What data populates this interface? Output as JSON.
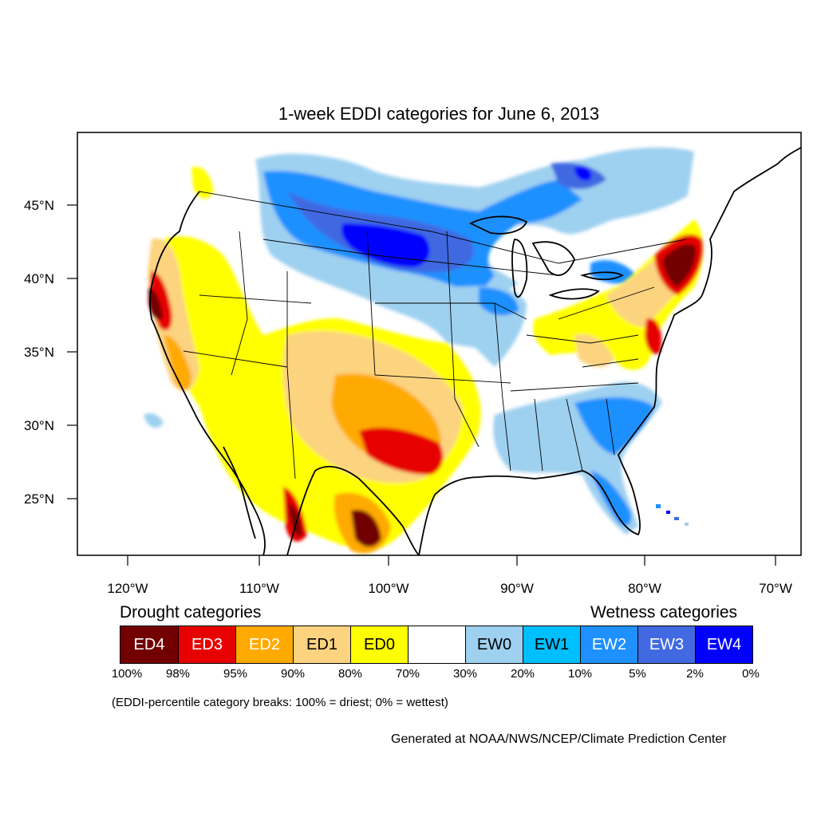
{
  "title": "1-week EDDI categories for June 6, 2013",
  "lat_labels": [
    "45°N",
    "40°N",
    "35°N",
    "30°N",
    "25°N"
  ],
  "lon_labels": [
    "120°W",
    "110°W",
    "100°W",
    "90°W",
    "80°W",
    "70°W"
  ],
  "legend": {
    "drought_heading": "Drought categories",
    "wetness_heading": "Wetness categories",
    "categories": [
      {
        "label": "ED4",
        "color": "#730000",
        "text_color": "#ffffff"
      },
      {
        "label": "ED3",
        "color": "#e60000",
        "text_color": "#ffffff"
      },
      {
        "label": "ED2",
        "color": "#ffaa00",
        "text_color": "#ffffff"
      },
      {
        "label": "ED1",
        "color": "#fcd37f",
        "text_color": "#000000"
      },
      {
        "label": "ED0",
        "color": "#ffff00",
        "text_color": "#000000"
      },
      {
        "label": "",
        "color": "#ffffff",
        "text_color": "#000000"
      },
      {
        "label": "EW0",
        "color": "#9ed0f0",
        "text_color": "#000000"
      },
      {
        "label": "EW1",
        "color": "#00bfff",
        "text_color": "#000000"
      },
      {
        "label": "EW2",
        "color": "#1e90ff",
        "text_color": "#ffffff"
      },
      {
        "label": "EW3",
        "color": "#4169e1",
        "text_color": "#ffffff"
      },
      {
        "label": "EW4",
        "color": "#0000ff",
        "text_color": "#ffffff"
      }
    ],
    "breaks": [
      "100%",
      "98%",
      "95%",
      "90%",
      "80%",
      "70%",
      "30%",
      "20%",
      "10%",
      "5%",
      "2%",
      "0%"
    ]
  },
  "note": "(EDDI-percentile category breaks: 100% = driest; 0% = wettest)",
  "credit": "Generated at NOAA/NWS/NCEP/Climate Prediction Center"
}
